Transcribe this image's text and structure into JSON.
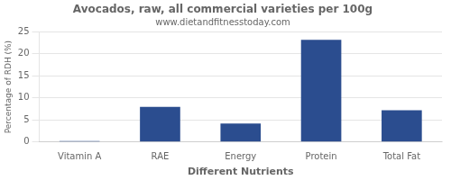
{
  "chart_data": {
    "type": "bar",
    "title": "Avocados, raw, all commercial varieties per 100g",
    "subtitle": "www.dietandfitnesstoday.com",
    "xlabel": "Different Nutrients",
    "ylabel": "Percentage of RDH (%)",
    "categories": [
      "Vitamin A",
      "RAE",
      "Energy",
      "Protein",
      "Total Fat"
    ],
    "values": [
      0.2,
      8.0,
      4.2,
      23.2,
      7.2
    ],
    "color": "#2b4d8f",
    "ylim": [
      0,
      25
    ],
    "yticks": [
      0,
      5,
      10,
      15,
      20,
      25
    ],
    "grid": true
  }
}
